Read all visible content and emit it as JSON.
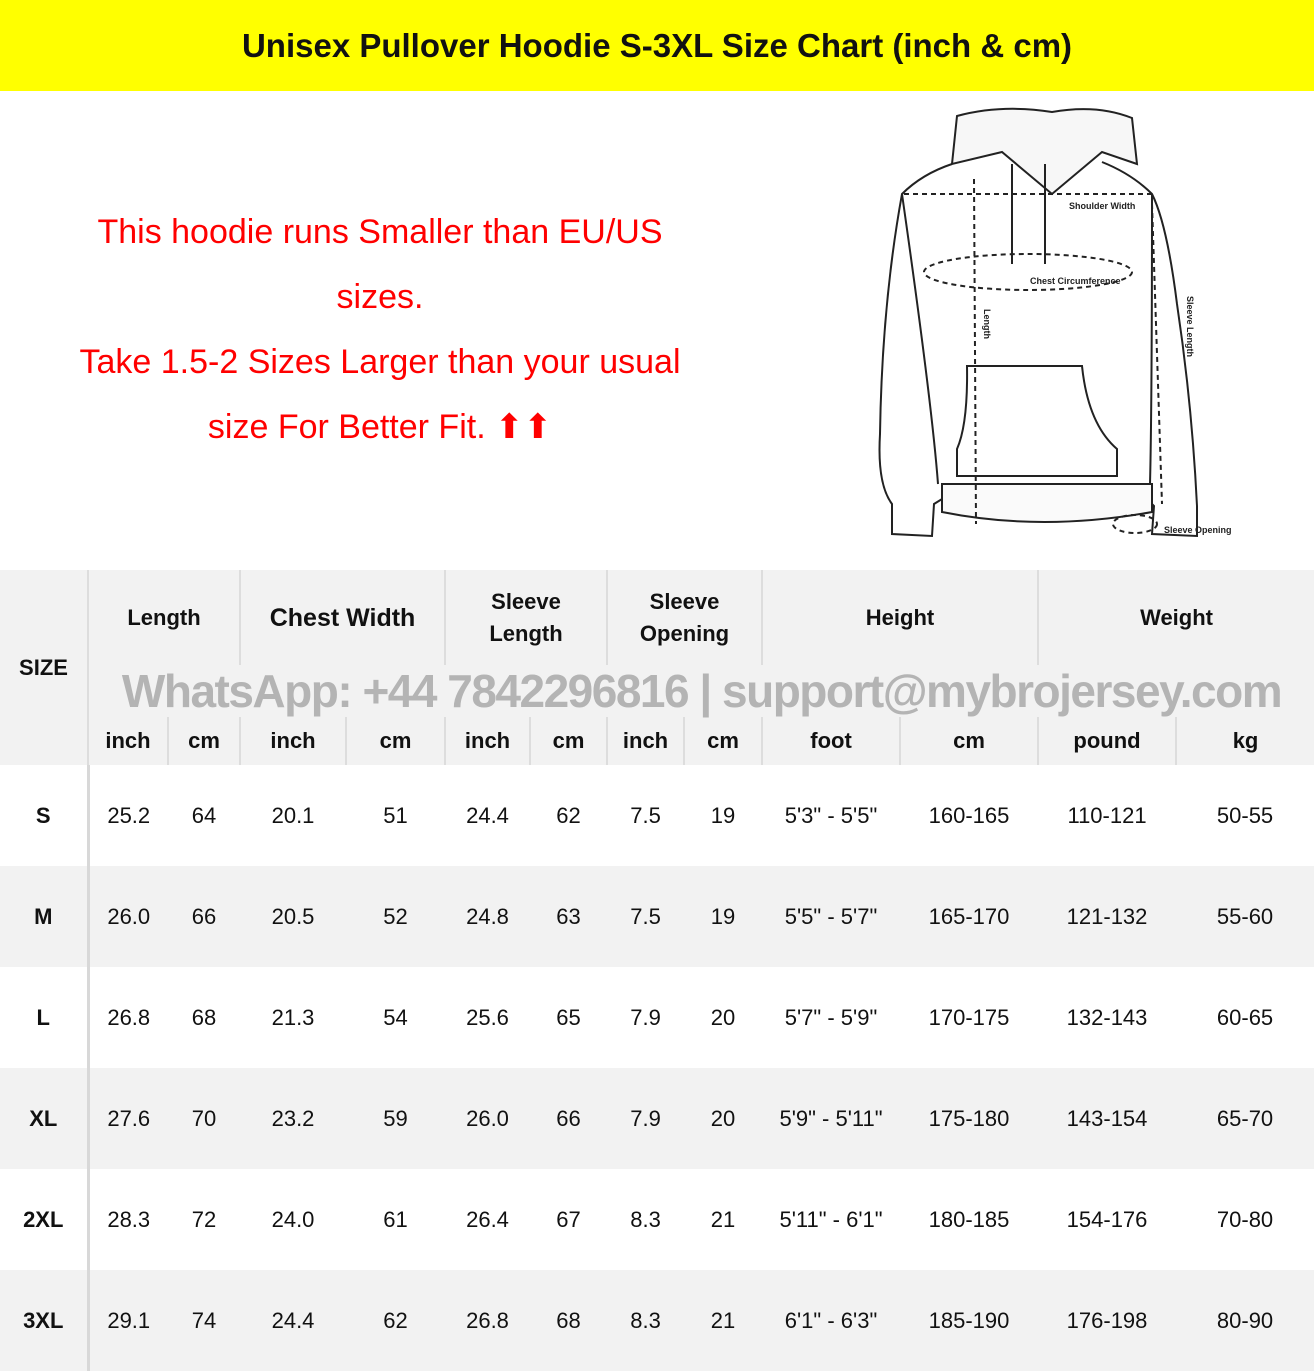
{
  "title": "Unisex Pullover Hoodie S-3XL Size Chart (inch & cm)",
  "notice": {
    "line1": "This hoodie runs Smaller than EU/US",
    "line2": "sizes.",
    "line3": "Take 1.5-2 Sizes Larger than your usual",
    "line4": "size For Better Fit. ⬆⬆"
  },
  "diagram": {
    "shoulder": "Shoulder Width",
    "chest": "Chest Circumference",
    "length": "Length",
    "sleeve_length": "Sleeve Length",
    "sleeve_opening": "Sleeve Opening"
  },
  "watermark": "WhatsApp: +44 7842296816 | support@mybrojersey.com",
  "colors": {
    "banner": "#ffff00",
    "notice": "#ff0000",
    "header_bg": "#f2f2f2"
  },
  "table": {
    "size_header": "SIZE",
    "groups": [
      "Length",
      "Chest Width",
      "Sleeve Length",
      "Sleeve Opening",
      "Height",
      "Weight"
    ],
    "units": [
      "inch",
      "cm",
      "inch",
      "cm",
      "inch",
      "cm",
      "inch",
      "cm",
      "foot",
      "cm",
      "pound",
      "kg"
    ],
    "rows": [
      [
        "S",
        "25.2",
        "64",
        "20.1",
        "51",
        "24.4",
        "62",
        "7.5",
        "19",
        "5'3\" - 5'5\"",
        "160-165",
        "110-121",
        "50-55"
      ],
      [
        "M",
        "26.0",
        "66",
        "20.5",
        "52",
        "24.8",
        "63",
        "7.5",
        "19",
        "5'5\" - 5'7\"",
        "165-170",
        "121-132",
        "55-60"
      ],
      [
        "L",
        "26.8",
        "68",
        "21.3",
        "54",
        "25.6",
        "65",
        "7.9",
        "20",
        "5'7\" - 5'9\"",
        "170-175",
        "132-143",
        "60-65"
      ],
      [
        "XL",
        "27.6",
        "70",
        "23.2",
        "59",
        "26.0",
        "66",
        "7.9",
        "20",
        "5'9\" - 5'11\"",
        "175-180",
        "143-154",
        "65-70"
      ],
      [
        "2XL",
        "28.3",
        "72",
        "24.0",
        "61",
        "26.4",
        "67",
        "8.3",
        "21",
        "5'11\" - 6'1\"",
        "180-185",
        "154-176",
        "70-80"
      ],
      [
        "3XL",
        "29.1",
        "74",
        "24.4",
        "62",
        "26.8",
        "68",
        "8.3",
        "21",
        "6'1\" - 6'3\"",
        "185-190",
        "176-198",
        "80-90"
      ]
    ]
  }
}
